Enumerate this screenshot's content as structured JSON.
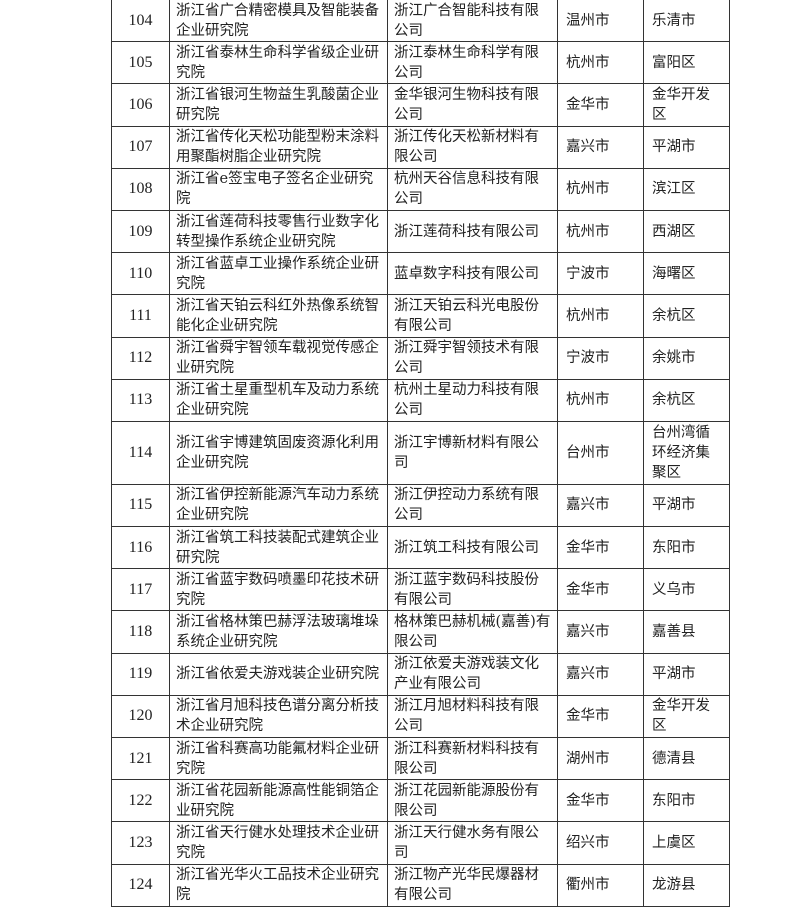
{
  "rows": [
    {
      "no": "104",
      "institute": "浙江省广合精密模具及智能装备企业研究院",
      "company": "浙江广合智能科技有限公司",
      "city": "温州市",
      "district": "乐清市"
    },
    {
      "no": "105",
      "institute": "浙江省泰林生命科学省级企业研究院",
      "company": "浙江泰林生命科学有限公司",
      "city": "杭州市",
      "district": "富阳区"
    },
    {
      "no": "106",
      "institute": "浙江省银河生物益生乳酸菌企业研究院",
      "company": "金华银河生物科技有限公司",
      "city": "金华市",
      "district": "金华开发区"
    },
    {
      "no": "107",
      "institute": "浙江省传化天松功能型粉末涂料用聚酯树脂企业研究院",
      "company": "浙江传化天松新材料有限公司",
      "city": "嘉兴市",
      "district": "平湖市"
    },
    {
      "no": "108",
      "institute": "浙江省e签宝电子签名企业研究院",
      "company": "杭州天谷信息科技有限公司",
      "city": "杭州市",
      "district": "滨江区"
    },
    {
      "no": "109",
      "institute": "浙江省莲荷科技零售行业数字化转型操作系统企业研究院",
      "company": "浙江莲荷科技有限公司",
      "city": "杭州市",
      "district": "西湖区"
    },
    {
      "no": "110",
      "institute": "浙江省蓝卓工业操作系统企业研究院",
      "company": "蓝卓数字科技有限公司",
      "city": "宁波市",
      "district": "海曙区"
    },
    {
      "no": "111",
      "institute": "浙江省天铂云科红外热像系统智能化企业研究院",
      "company": "浙江天铂云科光电股份有限公司",
      "city": "杭州市",
      "district": "余杭区"
    },
    {
      "no": "112",
      "institute": "浙江省舜宇智领车载视觉传感企业研究院",
      "company": "浙江舜宇智领技术有限公司",
      "city": "宁波市",
      "district": "余姚市"
    },
    {
      "no": "113",
      "institute": "浙江省土星重型机车及动力系统企业研究院",
      "company": "杭州土星动力科技有限公司",
      "city": "杭州市",
      "district": "余杭区"
    },
    {
      "no": "114",
      "institute": "浙江省宇博建筑固废资源化利用企业研究院",
      "company": "浙江宇博新材料有限公司",
      "city": "台州市",
      "district": "台州湾循环经济集聚区"
    },
    {
      "no": "115",
      "institute": "浙江省伊控新能源汽车动力系统企业研究院",
      "company": "浙江伊控动力系统有限公司",
      "city": "嘉兴市",
      "district": "平湖市"
    },
    {
      "no": "116",
      "institute": "浙江省筑工科技装配式建筑企业研究院",
      "company": "浙江筑工科技有限公司",
      "city": "金华市",
      "district": "东阳市"
    },
    {
      "no": "117",
      "institute": "浙江省蓝宇数码喷墨印花技术研究院",
      "company": "浙江蓝宇数码科技股份有限公司",
      "city": "金华市",
      "district": "义乌市"
    },
    {
      "no": "118",
      "institute": "浙江省格林策巴赫浮法玻璃堆垛系统企业研究院",
      "company": "格林策巴赫机械(嘉善)有限公司",
      "city": "嘉兴市",
      "district": "嘉善县"
    },
    {
      "no": "119",
      "institute": "浙江省依爱夫游戏装企业研究院",
      "company": "浙江依爱夫游戏装文化产业有限公司",
      "city": "嘉兴市",
      "district": "平湖市"
    },
    {
      "no": "120",
      "institute": "浙江省月旭科技色谱分离分析技术企业研究院",
      "company": "浙江月旭材料科技有限公司",
      "city": "金华市",
      "district": "金华开发区"
    },
    {
      "no": "121",
      "institute": "浙江省科赛高功能氟材料企业研究院",
      "company": "浙江科赛新材料科技有限公司",
      "city": "湖州市",
      "district": "德清县"
    },
    {
      "no": "122",
      "institute": "浙江省花园新能源高性能铜箔企业研究院",
      "company": "浙江花园新能源股份有限公司",
      "city": "金华市",
      "district": "东阳市"
    },
    {
      "no": "123",
      "institute": "浙江省天行健水处理技术企业研究院",
      "company": "浙江天行健水务有限公司",
      "city": "绍兴市",
      "district": "上虞区"
    },
    {
      "no": "124",
      "institute": "浙江省光华火工品技术企业研究院",
      "company": "浙江物产光华民爆器材有限公司",
      "city": "衢州市",
      "district": "龙游县"
    }
  ]
}
